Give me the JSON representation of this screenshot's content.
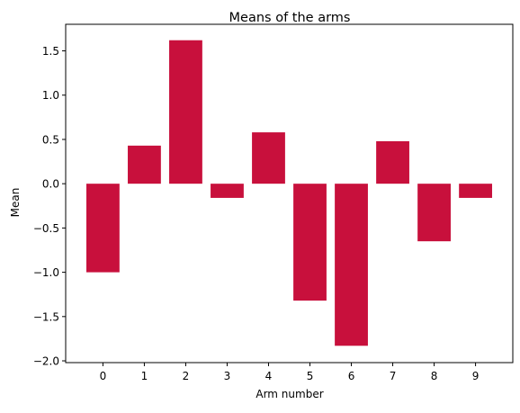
{
  "chart_data": {
    "type": "bar",
    "title": "Means of the arms",
    "xlabel": "Arm number",
    "ylabel": "Mean",
    "categories": [
      "0",
      "1",
      "2",
      "3",
      "4",
      "5",
      "6",
      "7",
      "8",
      "9"
    ],
    "values": [
      -1.0,
      0.43,
      1.62,
      -0.16,
      0.58,
      -1.32,
      -1.83,
      0.48,
      -0.65,
      -0.16
    ],
    "ylim": [
      -2.02,
      1.8
    ],
    "yticks": [
      "−2.0",
      "−1.5",
      "−1.0",
      "−0.5",
      "0.0",
      "0.5",
      "1.0",
      "1.5"
    ],
    "ytick_values": [
      -2.0,
      -1.5,
      -1.0,
      -0.5,
      0.0,
      0.5,
      1.0,
      1.5
    ],
    "bar_color": "#c8103c",
    "grid": false,
    "legend": "none"
  }
}
